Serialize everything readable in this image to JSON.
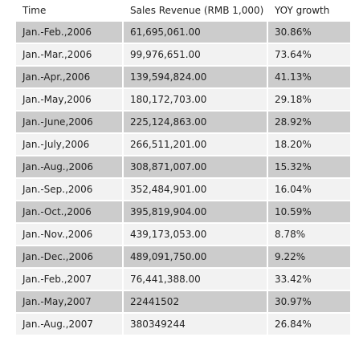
{
  "table": {
    "headers": [
      "Time",
      "Sales Revenue (RMB 1,000)",
      "YOY growth"
    ],
    "rows": [
      [
        "Jan.-Feb.,2006",
        "61,695,061.00",
        "30.86%"
      ],
      [
        "Jan.-Mar.,2006",
        "99,976,651.00",
        "73.64%"
      ],
      [
        "Jan.-Apr.,2006",
        "139,594,824.00",
        "41.13%"
      ],
      [
        "Jan.-May,2006",
        "180,172,703.00",
        "29.18%"
      ],
      [
        "Jan.-June,2006",
        "225,124,863.00",
        "28.92%"
      ],
      [
        "Jan.-July,2006",
        "266,511,201.00",
        "18.20%"
      ],
      [
        "Jan.-Aug.,2006",
        "308,871,007.00",
        "15.32%"
      ],
      [
        "Jan.-Sep.,2006",
        "352,484,901.00",
        "16.04%"
      ],
      [
        "Jan.-Oct.,2006",
        "395,819,904.00",
        "10.59%"
      ],
      [
        "Jan.-Nov.,2006",
        "439,173,053.00",
        "8.78%"
      ],
      [
        "Jan.-Dec.,2006",
        "489,091,750.00",
        "9.22%"
      ],
      [
        "Jan.-Feb.,2007",
        "76,441,388.00",
        "33.42%"
      ],
      [
        "Jan.-May,2007",
        "22441502",
        "30.97%"
      ],
      [
        "Jan.-Aug.,2007",
        "380349244",
        "26.84%"
      ]
    ]
  }
}
